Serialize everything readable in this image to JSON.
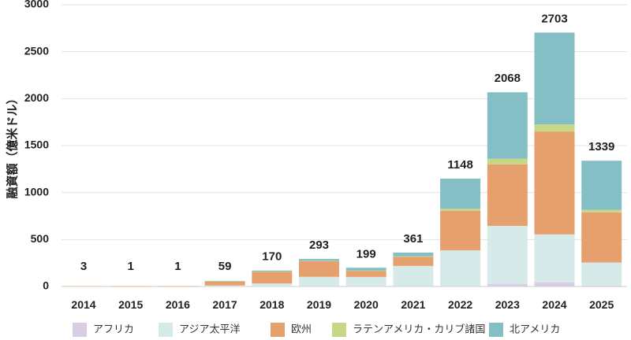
{
  "chart_data": {
    "type": "bar",
    "stacked": true,
    "title": "",
    "xlabel": "",
    "ylabel": "融資額（億米ドル）",
    "ylim": [
      0,
      3000
    ],
    "yticks": [
      0,
      500,
      1000,
      1500,
      2000,
      2500,
      3000
    ],
    "grid": true,
    "legend_position": "bottom",
    "categories": [
      "2014",
      "2015",
      "2016",
      "2017",
      "2018",
      "2019",
      "2020",
      "2021",
      "2022",
      "2023",
      "2024",
      "2025"
    ],
    "totals": [
      "3",
      "1",
      "1",
      "59",
      "170",
      "293",
      "199",
      "361",
      "1148",
      "2068",
      "2703",
      "1339"
    ],
    "series": [
      {
        "name": "アフリカ",
        "color": "#d9cde3",
        "values": [
          0,
          0,
          0,
          0,
          2,
          3,
          2,
          4,
          5,
          25,
          45,
          10
        ]
      },
      {
        "name": "アジア太平洋",
        "color": "#d6eae9",
        "values": [
          1,
          0,
          0,
          10,
          30,
          100,
          100,
          215,
          380,
          620,
          510,
          245
        ]
      },
      {
        "name": "欧州",
        "color": "#e6a06e",
        "values": [
          2,
          1,
          1,
          44,
          125,
          165,
          65,
          95,
          420,
          655,
          1095,
          535
        ]
      },
      {
        "name": "ラテンアメリカ・カリブ諸国",
        "color": "#c6d886",
        "values": [
          0,
          0,
          0,
          1,
          3,
          5,
          2,
          7,
          23,
          60,
          75,
          25
        ]
      },
      {
        "name": "北アメリカ",
        "color": "#84bfc5",
        "values": [
          0,
          0,
          0,
          4,
          10,
          20,
          30,
          40,
          320,
          708,
          978,
          524
        ]
      }
    ]
  }
}
